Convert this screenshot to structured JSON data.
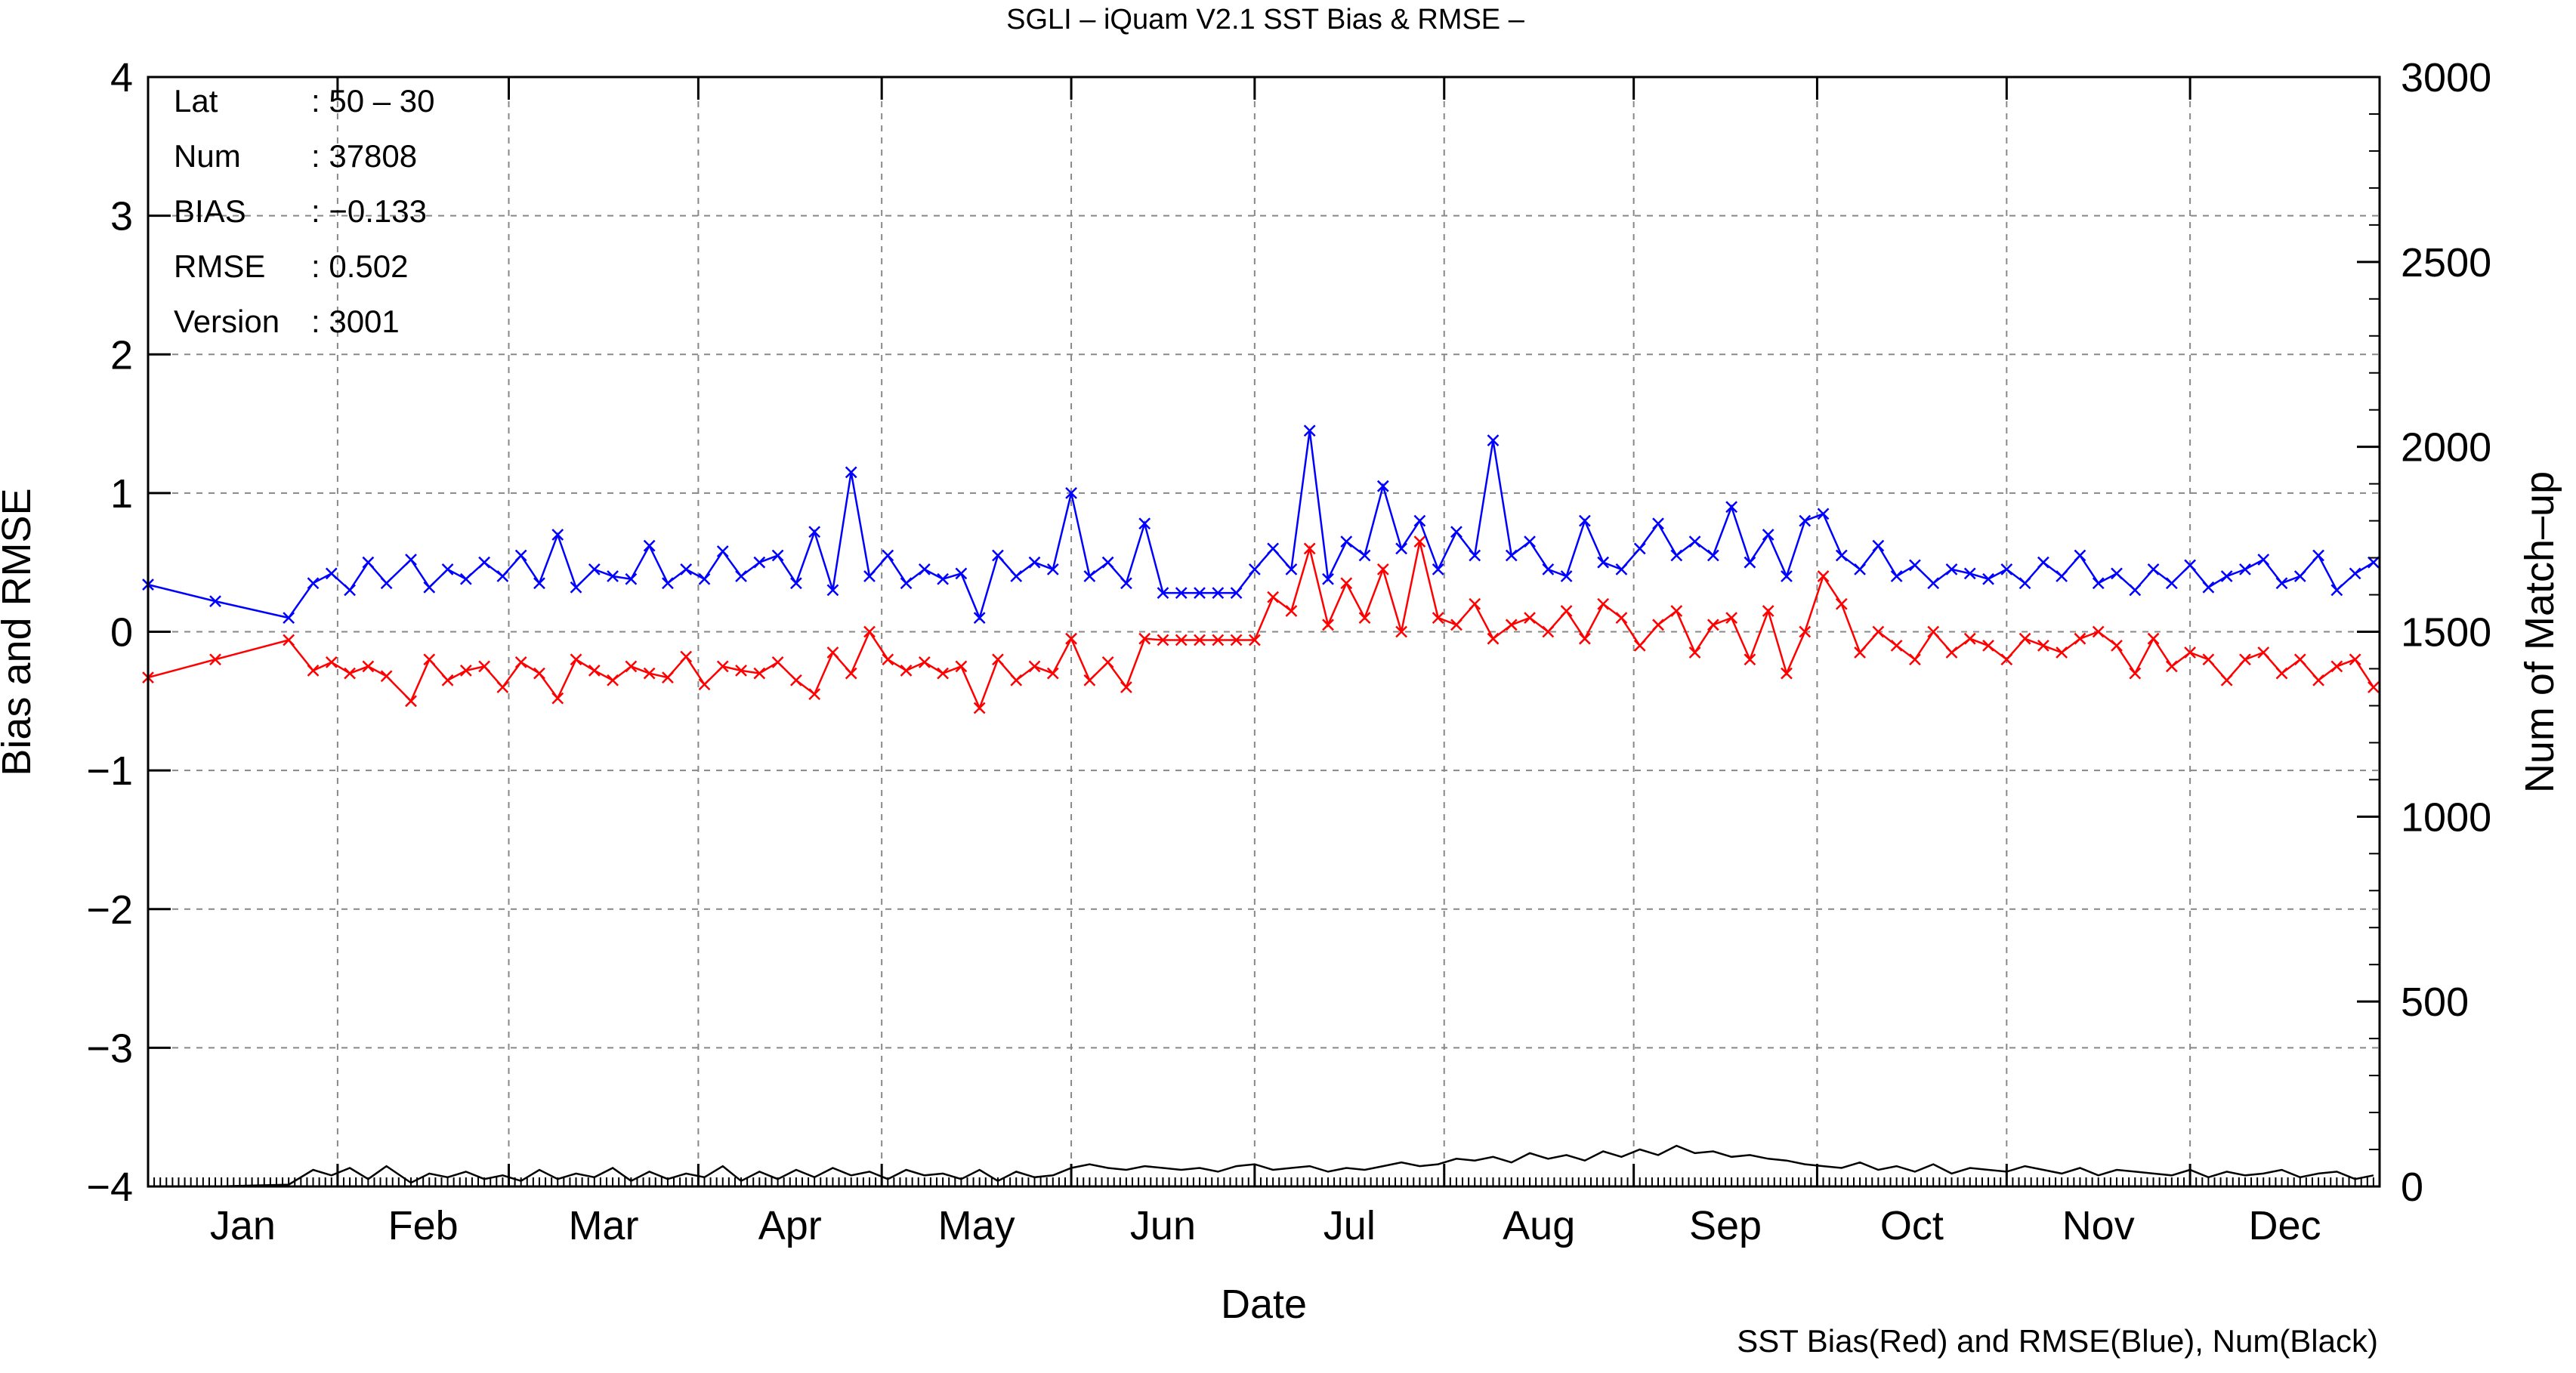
{
  "chart_data": {
    "type": "line",
    "title": "SGLI – iQuam V2.1 SST Bias & RMSE  –",
    "xlabel": "Date",
    "ylabel_left": "Bias and RMSE",
    "ylabel_right": "Num of Match–up",
    "footer": "SST Bias(Red) and RMSE(Blue), Num(Black)",
    "xlim": [
      1,
      366
    ],
    "ylim_left": [
      -4,
      4
    ],
    "ylim_right": [
      0,
      3000
    ],
    "grid": true,
    "x_tick_labels": [
      "Jan",
      "Feb",
      "Mar",
      "Apr",
      "May",
      "Jun",
      "Jul",
      "Aug",
      "Sep",
      "Oct",
      "Nov",
      "Dec"
    ],
    "y_left_tick_labels": [
      "4",
      "3",
      "2",
      "1",
      "0",
      "−1",
      "−2",
      "−3",
      "−4"
    ],
    "y_left_ticks": [
      4,
      3,
      2,
      1,
      0,
      -1,
      -2,
      -3,
      -4
    ],
    "y_right_tick_labels": [
      "3000",
      "2500",
      "2000",
      "1500",
      "1000",
      "500",
      "0"
    ],
    "y_right_ticks": [
      3000,
      2500,
      2000,
      1500,
      1000,
      500,
      0
    ],
    "info_box": [
      {
        "key": "Lat",
        "value": ": 50 – 30"
      },
      {
        "key": "Num",
        "value": ": 37808"
      },
      {
        "key": "BIAS",
        "value": ": −0.133"
      },
      {
        "key": "RMSE",
        "value": ": 0.502"
      },
      {
        "key": "Version",
        "value": ": 3001"
      }
    ],
    "colors": {
      "bias": "#ff0000",
      "rmse": "#0000ff",
      "num": "#000000",
      "grid": "#888888"
    },
    "series": [
      {
        "name": "SST Bias",
        "axis": "left",
        "marker": "x",
        "x": [
          1,
          12,
          24,
          28,
          31,
          34,
          37,
          40,
          44,
          47,
          50,
          53,
          56,
          59,
          62,
          65,
          68,
          71,
          74,
          77,
          80,
          83,
          86,
          89,
          92,
          95,
          98,
          101,
          104,
          107,
          110,
          113,
          116,
          119,
          122,
          125,
          128,
          131,
          134,
          137,
          140,
          143,
          146,
          149,
          152,
          155,
          158,
          161,
          164,
          167,
          170,
          173,
          176,
          179,
          182,
          185,
          188,
          191,
          194,
          197,
          200,
          203,
          206,
          209,
          212,
          215,
          218,
          221,
          224,
          227,
          230,
          233,
          236,
          239,
          242,
          245,
          248,
          251,
          254,
          257,
          260,
          263,
          266,
          269,
          272,
          275,
          278,
          281,
          284,
          287,
          290,
          293,
          296,
          299,
          302,
          305,
          308,
          311,
          314,
          317,
          320,
          323,
          326,
          329,
          332,
          335,
          338,
          341,
          344,
          347,
          350,
          353,
          356,
          359,
          362,
          365
        ],
        "values": [
          -0.33,
          -0.2,
          -0.06,
          -0.28,
          -0.22,
          -0.3,
          -0.25,
          -0.32,
          -0.5,
          -0.2,
          -0.35,
          -0.28,
          -0.25,
          -0.4,
          -0.22,
          -0.3,
          -0.48,
          -0.2,
          -0.28,
          -0.35,
          -0.25,
          -0.3,
          -0.33,
          -0.18,
          -0.38,
          -0.25,
          -0.28,
          -0.3,
          -0.22,
          -0.35,
          -0.45,
          -0.15,
          -0.3,
          0.0,
          -0.2,
          -0.28,
          -0.22,
          -0.3,
          -0.25,
          -0.55,
          -0.2,
          -0.35,
          -0.25,
          -0.3,
          -0.05,
          -0.35,
          -0.22,
          -0.4,
          -0.05,
          -0.06,
          -0.06,
          -0.06,
          -0.06,
          -0.06,
          -0.06,
          0.25,
          0.15,
          0.6,
          0.05,
          0.35,
          0.1,
          0.45,
          0.0,
          0.65,
          0.1,
          0.05,
          0.2,
          -0.05,
          0.05,
          0.1,
          0.0,
          0.15,
          -0.05,
          0.2,
          0.1,
          -0.1,
          0.05,
          0.15,
          -0.15,
          0.05,
          0.1,
          -0.2,
          0.15,
          -0.3,
          0.0,
          0.4,
          0.2,
          -0.15,
          0.0,
          -0.1,
          -0.2,
          0.0,
          -0.15,
          -0.05,
          -0.1,
          -0.2,
          -0.05,
          -0.1,
          -0.15,
          -0.05,
          0.0,
          -0.1,
          -0.3,
          -0.05,
          -0.25,
          -0.15,
          -0.2,
          -0.35,
          -0.2,
          -0.15,
          -0.3,
          -0.2,
          -0.35,
          -0.25,
          -0.2,
          -0.4
        ]
      },
      {
        "name": "RMSE",
        "axis": "left",
        "marker": "x",
        "x": [
          1,
          12,
          24,
          28,
          31,
          34,
          37,
          40,
          44,
          47,
          50,
          53,
          56,
          59,
          62,
          65,
          68,
          71,
          74,
          77,
          80,
          83,
          86,
          89,
          92,
          95,
          98,
          101,
          104,
          107,
          110,
          113,
          116,
          119,
          122,
          125,
          128,
          131,
          134,
          137,
          140,
          143,
          146,
          149,
          152,
          155,
          158,
          161,
          164,
          167,
          170,
          173,
          176,
          179,
          182,
          185,
          188,
          191,
          194,
          197,
          200,
          203,
          206,
          209,
          212,
          215,
          218,
          221,
          224,
          227,
          230,
          233,
          236,
          239,
          242,
          245,
          248,
          251,
          254,
          257,
          260,
          263,
          266,
          269,
          272,
          275,
          278,
          281,
          284,
          287,
          290,
          293,
          296,
          299,
          302,
          305,
          308,
          311,
          314,
          317,
          320,
          323,
          326,
          329,
          332,
          335,
          338,
          341,
          344,
          347,
          350,
          353,
          356,
          359,
          362,
          365
        ],
        "values": [
          0.34,
          0.22,
          0.1,
          0.35,
          0.42,
          0.3,
          0.5,
          0.35,
          0.52,
          0.32,
          0.45,
          0.38,
          0.5,
          0.4,
          0.55,
          0.35,
          0.7,
          0.32,
          0.45,
          0.4,
          0.38,
          0.62,
          0.35,
          0.45,
          0.38,
          0.58,
          0.4,
          0.5,
          0.55,
          0.35,
          0.72,
          0.3,
          1.15,
          0.4,
          0.55,
          0.35,
          0.45,
          0.38,
          0.42,
          0.1,
          0.55,
          0.4,
          0.5,
          0.45,
          1.0,
          0.4,
          0.5,
          0.35,
          0.78,
          0.28,
          0.28,
          0.28,
          0.28,
          0.28,
          0.45,
          0.6,
          0.45,
          1.45,
          0.38,
          0.65,
          0.55,
          1.05,
          0.6,
          0.8,
          0.45,
          0.72,
          0.55,
          1.38,
          0.55,
          0.65,
          0.45,
          0.4,
          0.8,
          0.5,
          0.45,
          0.6,
          0.78,
          0.55,
          0.65,
          0.55,
          0.9,
          0.5,
          0.7,
          0.4,
          0.8,
          0.85,
          0.55,
          0.45,
          0.62,
          0.4,
          0.48,
          0.35,
          0.45,
          0.42,
          0.38,
          0.45,
          0.35,
          0.5,
          0.4,
          0.55,
          0.35,
          0.42,
          0.3,
          0.45,
          0.35,
          0.48,
          0.32,
          0.4,
          0.45,
          0.52,
          0.35,
          0.4,
          0.55,
          0.3,
          0.42,
          0.5
        ]
      },
      {
        "name": "Num",
        "axis": "right",
        "marker": "none",
        "x": [
          1,
          12,
          24,
          28,
          31,
          34,
          37,
          40,
          44,
          47,
          50,
          53,
          56,
          59,
          62,
          65,
          68,
          71,
          74,
          77,
          80,
          83,
          86,
          89,
          92,
          95,
          98,
          101,
          104,
          107,
          110,
          113,
          116,
          119,
          122,
          125,
          128,
          131,
          134,
          137,
          140,
          143,
          146,
          149,
          152,
          155,
          158,
          161,
          164,
          167,
          170,
          173,
          176,
          179,
          182,
          185,
          188,
          191,
          194,
          197,
          200,
          203,
          206,
          209,
          212,
          215,
          218,
          221,
          224,
          227,
          230,
          233,
          236,
          239,
          242,
          245,
          248,
          251,
          254,
          257,
          260,
          263,
          266,
          269,
          272,
          275,
          278,
          281,
          284,
          287,
          290,
          293,
          296,
          299,
          302,
          305,
          308,
          311,
          314,
          317,
          320,
          323,
          326,
          329,
          332,
          335,
          338,
          341,
          344,
          347,
          350,
          353,
          356,
          359,
          362,
          365
        ],
        "values": [
          0,
          0,
          5,
          45,
          30,
          50,
          20,
          55,
          10,
          35,
          25,
          40,
          20,
          30,
          15,
          45,
          20,
          35,
          25,
          50,
          15,
          40,
          20,
          35,
          25,
          55,
          15,
          40,
          20,
          45,
          25,
          50,
          30,
          40,
          20,
          45,
          30,
          35,
          20,
          45,
          15,
          40,
          25,
          30,
          50,
          60,
          50,
          45,
          55,
          50,
          45,
          50,
          40,
          55,
          60,
          45,
          50,
          55,
          40,
          50,
          45,
          55,
          65,
          55,
          60,
          75,
          70,
          80,
          65,
          90,
          75,
          85,
          70,
          95,
          80,
          100,
          85,
          110,
          90,
          95,
          80,
          85,
          75,
          70,
          60,
          55,
          50,
          65,
          45,
          55,
          40,
          60,
          35,
          50,
          45,
          40,
          55,
          45,
          35,
          50,
          30,
          45,
          40,
          35,
          30,
          45,
          25,
          40,
          30,
          35,
          45,
          25,
          35,
          40,
          20,
          30
        ]
      }
    ]
  }
}
